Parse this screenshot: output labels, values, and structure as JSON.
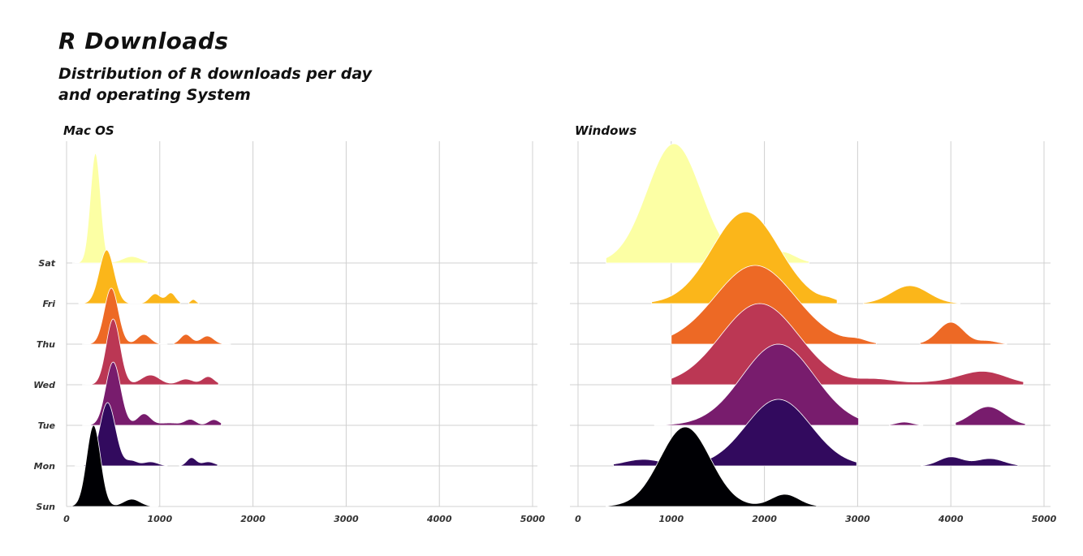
{
  "title": "R Downloads",
  "subtitle_lines": [
    "Distribution of R downloads per day",
    "and operating System"
  ],
  "chart_data": {
    "type": "ridgeline",
    "xlim": [
      0,
      5000
    ],
    "x_ticks": [
      0,
      1000,
      2000,
      3000,
      4000,
      5000
    ],
    "days": [
      "Sun",
      "Mon",
      "Tue",
      "Wed",
      "Thu",
      "Fri",
      "Sat"
    ],
    "colors": {
      "Sun": "#000004",
      "Mon": "#320a5e",
      "Tue": "#781c6d",
      "Wed": "#bb3754",
      "Thu": "#ed6925",
      "Fri": "#fbb61a",
      "Sat": "#fcffa4"
    },
    "grid": true,
    "legend": "none",
    "panels": [
      {
        "name": "Mac OS",
        "series": [
          {
            "day": "Sun",
            "range": [
              60,
              980
            ],
            "peaks": [
              [
                290,
                1.0,
                75
              ],
              [
                700,
                0.09,
                90
              ]
            ]
          },
          {
            "day": "Mon",
            "range": [
              90,
              1080
            ],
            "peaks": [
              [
                440,
                0.78,
                85
              ],
              [
                700,
                0.06,
                60
              ],
              [
                900,
                0.05,
                80
              ]
            ]
          },
          {
            "day": "Mon",
            "range": [
              1210,
              1620
            ],
            "peaks": [
              [
                1340,
                0.1,
                50
              ],
              [
                1520,
                0.05,
                70
              ]
            ]
          },
          {
            "day": "Tue",
            "range": [
              170,
              1660
            ],
            "peaks": [
              [
                500,
                0.78,
                80
              ],
              [
                830,
                0.14,
                70
              ],
              [
                1330,
                0.07,
                60
              ],
              [
                1580,
                0.07,
                60
              ],
              [
                1100,
                0.03,
                120
              ]
            ]
          },
          {
            "day": "Wed",
            "range": [
              170,
              1630
            ],
            "peaks": [
              [
                500,
                0.81,
                75
              ],
              [
                900,
                0.12,
                100
              ],
              [
                1280,
                0.07,
                80
              ],
              [
                1520,
                0.1,
                65
              ]
            ]
          },
          {
            "day": "Thu",
            "range": [
              170,
              1080
            ],
            "peaks": [
              [
                480,
                0.69,
                75
              ],
              [
                830,
                0.12,
                70
              ]
            ]
          },
          {
            "day": "Thu",
            "range": [
              1150,
              1760
            ],
            "peaks": [
              [
                1280,
                0.12,
                60
              ],
              [
                1510,
                0.1,
                70
              ]
            ]
          },
          {
            "day": "Fri",
            "range": [
              130,
              1220
            ],
            "peaks": [
              [
                430,
                0.66,
                80
              ],
              [
                950,
                0.12,
                60
              ],
              [
                1120,
                0.13,
                50
              ]
            ]
          },
          {
            "day": "Fri",
            "range": [
              1310,
              1420
            ],
            "peaks": [
              [
                1360,
                0.05,
                30
              ]
            ]
          },
          {
            "day": "Sat",
            "range": [
              60,
              870
            ],
            "peaks": [
              [
                310,
                1.35,
                55
              ],
              [
                700,
                0.08,
                100
              ]
            ]
          }
        ]
      },
      {
        "name": "Windows",
        "series": [
          {
            "day": "Sun",
            "range": [
              300,
              2560
            ],
            "peaks": [
              [
                1150,
                0.98,
                270
              ],
              [
                2220,
                0.15,
                150
              ]
            ]
          },
          {
            "day": "Mon",
            "range": [
              380,
              2990
            ],
            "peaks": [
              [
                2150,
                0.82,
                350
              ],
              [
                700,
                0.08,
                200
              ]
            ]
          },
          {
            "day": "Mon",
            "range": [
              3680,
              4720
            ],
            "peaks": [
              [
                4000,
                0.11,
                130
              ],
              [
                4420,
                0.09,
                150
              ]
            ]
          },
          {
            "day": "Tue",
            "range": [
              820,
              3010
            ],
            "peaks": [
              [
                2150,
                1.0,
                390
              ]
            ]
          },
          {
            "day": "Tue",
            "range": [
              3340,
              3700
            ],
            "peaks": [
              [
                3500,
                0.04,
                90
              ]
            ]
          },
          {
            "day": "Tue",
            "range": [
              4050,
              4800
            ],
            "peaks": [
              [
                4400,
                0.23,
                180
              ]
            ]
          },
          {
            "day": "Wed",
            "range": [
              1000,
              4780
            ],
            "peaks": [
              [
                1950,
                1.0,
                420
              ],
              [
                3200,
                0.06,
                200
              ],
              [
                4350,
                0.16,
                250
              ],
              [
                3800,
                0.03,
                300
              ]
            ]
          },
          {
            "day": "Thu",
            "range": [
              1000,
              3200
            ],
            "peaks": [
              [
                1900,
                0.97,
                430
              ],
              [
                3000,
                0.04,
                100
              ]
            ]
          },
          {
            "day": "Thu",
            "range": [
              3670,
              4600
            ],
            "peaks": [
              [
                4000,
                0.27,
                140
              ],
              [
                4400,
                0.04,
                100
              ]
            ]
          },
          {
            "day": "Fri",
            "range": [
              790,
              2780
            ],
            "peaks": [
              [
                1800,
                1.13,
                360
              ],
              [
                2700,
                0.03,
                80
              ]
            ]
          },
          {
            "day": "Fri",
            "range": [
              3060,
              4100
            ],
            "peaks": [
              [
                3560,
                0.22,
                200
              ]
            ]
          },
          {
            "day": "Sat",
            "range": [
              300,
              2480
            ],
            "peaks": [
              [
                1030,
                1.47,
                290
              ],
              [
                2180,
                0.14,
                150
              ]
            ]
          }
        ]
      }
    ]
  }
}
